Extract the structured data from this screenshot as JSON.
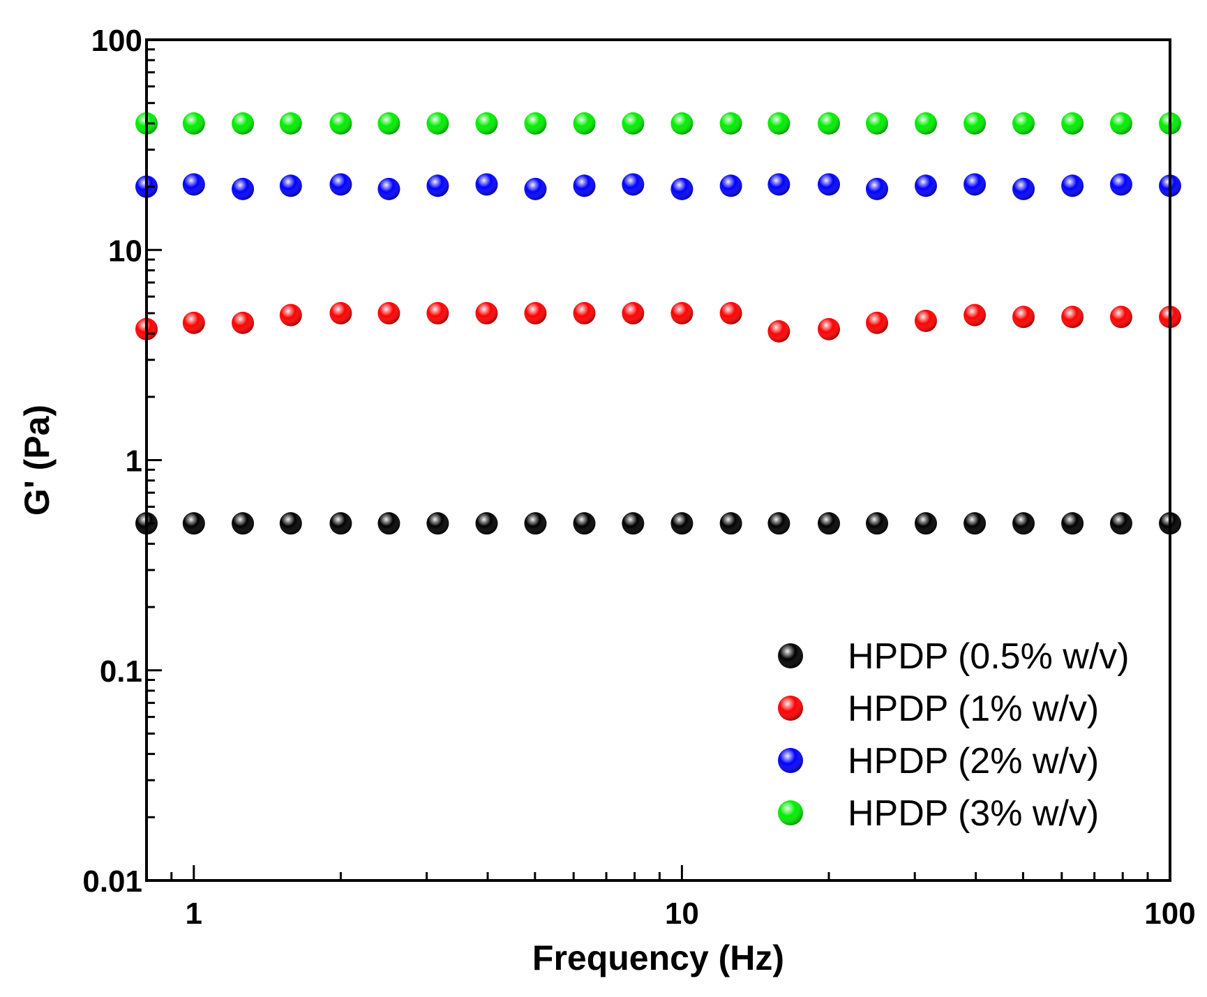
{
  "chart_data": {
    "type": "scatter",
    "xlabel": "Frequency (Hz)",
    "ylabel": "G' (Pa)",
    "x_scale": "log",
    "y_scale": "log",
    "xlim": [
      0.8,
      100
    ],
    "ylim": [
      0.01,
      100
    ],
    "x_ticks": [
      {
        "value": 1,
        "label": "1"
      },
      {
        "value": 10,
        "label": "10"
      },
      {
        "value": 100,
        "label": "100"
      }
    ],
    "y_ticks": [
      {
        "value": 0.01,
        "label": "0.01"
      },
      {
        "value": 0.1,
        "label": "0.1"
      },
      {
        "value": 1,
        "label": "1"
      },
      {
        "value": 10,
        "label": "10"
      },
      {
        "value": 100,
        "label": "100"
      }
    ],
    "grid": false,
    "legend_position": "bottom-right",
    "x": [
      0.8,
      1.0,
      1.26,
      1.58,
      2.0,
      2.51,
      3.16,
      3.98,
      5.01,
      6.31,
      7.94,
      10.0,
      12.6,
      15.8,
      20.0,
      25.1,
      31.6,
      39.8,
      50.1,
      63.1,
      79.4,
      100.0
    ],
    "series": [
      {
        "name": "HPDP (0.5% w/v)",
        "color": "#000000",
        "values": [
          0.5,
          0.5,
          0.5,
          0.5,
          0.5,
          0.5,
          0.5,
          0.5,
          0.5,
          0.5,
          0.5,
          0.5,
          0.5,
          0.5,
          0.5,
          0.5,
          0.5,
          0.5,
          0.5,
          0.5,
          0.5,
          0.5
        ]
      },
      {
        "name": "HPDP (1% w/v)",
        "color": "#ff0000",
        "values": [
          4.2,
          4.5,
          4.5,
          4.9,
          5.0,
          5.0,
          5.0,
          5.0,
          5.0,
          5.0,
          5.0,
          5.0,
          5.0,
          4.1,
          4.2,
          4.5,
          4.6,
          4.9,
          4.8,
          4.8,
          4.8,
          4.8
        ]
      },
      {
        "name": "HPDP (2% w/v)",
        "color": "#0000ff",
        "values": [
          20,
          20.5,
          19.5,
          20.2,
          20.5,
          19.5,
          20.2,
          20.5,
          19.5,
          20.2,
          20.5,
          19.5,
          20.2,
          20.5,
          20.5,
          19.5,
          20.2,
          20.5,
          19.5,
          20.2,
          20.5,
          20.2
        ]
      },
      {
        "name": "HPDP (3% w/v)",
        "color": "#00ee00",
        "values": [
          40,
          40,
          40,
          40,
          40,
          40,
          40,
          40,
          40,
          40,
          40,
          40,
          40,
          40,
          40,
          40,
          40,
          40,
          40,
          40,
          40,
          40
        ]
      }
    ]
  }
}
